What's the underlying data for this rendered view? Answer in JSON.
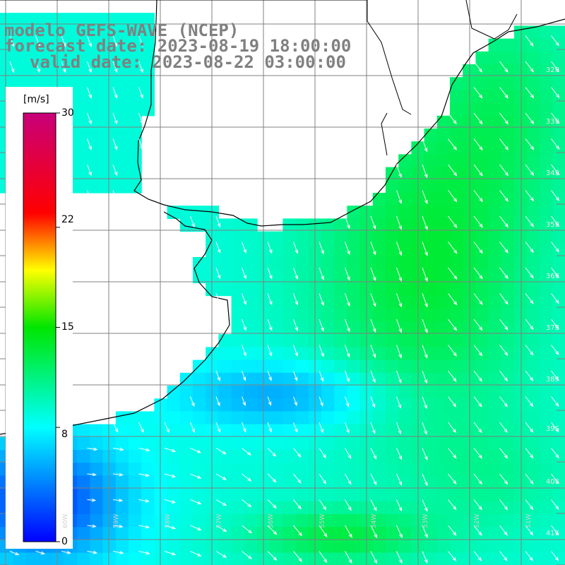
{
  "header": {
    "line1": "modelo GEFS-WAVE (NCEP)",
    "line2": "forecast date: 2023-08-19 18:00:00",
    "line3": "valid date: 2023-08-22 03:00:00"
  },
  "colorbar": {
    "unit": "[m/s]",
    "ticks": [
      "30",
      "22",
      "15",
      "8",
      "0"
    ],
    "tick_values": [
      30,
      22,
      15,
      8,
      0
    ],
    "max": 30,
    "colors": [
      "#0000ff",
      "#00ffff",
      "#00ff00",
      "#ffff00",
      "#ff0000",
      "#cc0077"
    ]
  },
  "map": {
    "field": "wind speed and direction",
    "grid": true,
    "lat_labels": [
      "32S",
      "33S",
      "34S",
      "35S",
      "36S",
      "37S",
      "38S",
      "39S",
      "40S",
      "41S"
    ],
    "lon_labels": [
      "60W",
      "59W",
      "58W",
      "57W",
      "56W",
      "55W",
      "54W",
      "53W",
      "52W",
      "51W"
    ],
    "land_color": "#ffffff",
    "coast_color": "#000000",
    "arrow_color": "#ffffff"
  }
}
